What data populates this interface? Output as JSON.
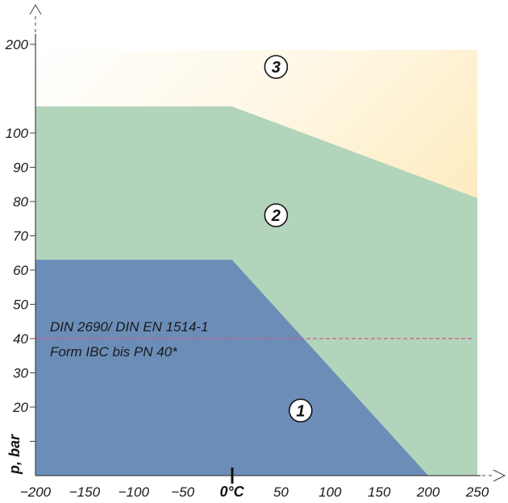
{
  "chart_data": {
    "type": "area",
    "ylabel": "p, bar",
    "xlim": [
      -200,
      250
    ],
    "x_ticks": [
      {
        "value": -200,
        "label": "−200"
      },
      {
        "value": -150,
        "label": "−150"
      },
      {
        "value": -100,
        "label": "−100"
      },
      {
        "value": -50,
        "label": "−50"
      },
      {
        "value": 0,
        "label": "0°C"
      },
      {
        "value": 50,
        "label": "50"
      },
      {
        "value": 100,
        "label": "100"
      },
      {
        "value": 150,
        "label": "150"
      },
      {
        "value": 200,
        "label": "200"
      },
      {
        "value": 250,
        "label": "250"
      }
    ],
    "y_ticks": [
      {
        "value": 10,
        "label": ""
      },
      {
        "value": 20,
        "label": "20"
      },
      {
        "value": 30,
        "label": "30"
      },
      {
        "value": 40,
        "label": "40"
      },
      {
        "value": 50,
        "label": "50"
      },
      {
        "value": 60,
        "label": "60"
      },
      {
        "value": 70,
        "label": "70"
      },
      {
        "value": 80,
        "label": "80"
      },
      {
        "value": 90,
        "label": "90"
      },
      {
        "value": 100,
        "label": "100"
      },
      {
        "value": 200,
        "label": "200"
      }
    ],
    "y_scale_note": "linear from 0 to 100, compressed segment from 100 to 200",
    "zones": [
      {
        "label": "1",
        "color": "#6b8db8",
        "boundary": [
          [
            -200,
            63
          ],
          [
            0,
            63
          ],
          [
            200,
            0
          ]
        ]
      },
      {
        "label": "2",
        "color": "#b2d4bb",
        "boundary": [
          [
            -200,
            130
          ],
          [
            0,
            130
          ],
          [
            250,
            81
          ]
        ]
      },
      {
        "label": "3",
        "color": "#fbe4b0",
        "boundary": [
          [
            -200,
            200
          ],
          [
            250,
            200
          ]
        ]
      }
    ],
    "reference_line": {
      "y": 40,
      "color": "#d9558a",
      "label_lines": [
        "DIN 2690/ DIN EN 1514-1",
        "Form IBC bis PN 40*"
      ]
    }
  }
}
